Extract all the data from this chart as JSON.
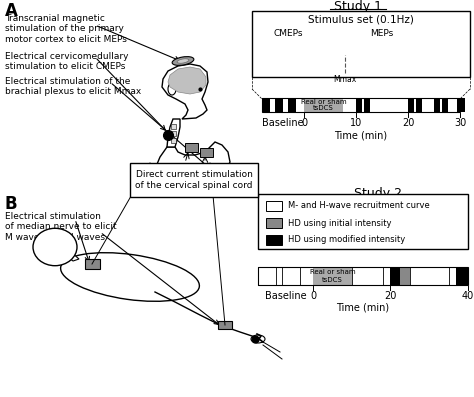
{
  "bg_color": "#ffffff",
  "panel_A_label": "A",
  "panel_B_label": "B",
  "study1_title": "Study 1",
  "study2_title": "Study 2",
  "stimulus_set_title": "Stimulus set (0.1Hz)",
  "cmeps_label": "CMEPs",
  "meps_label": "MEPs",
  "mmax_label": "Mmax",
  "baseline_label": "Baseline",
  "time_label": "Time (min)",
  "real_sham_label": "Real or sham\ntsDCS",
  "direct_current_label": "Direct current stimulation\nof the cervical spinal cord",
  "label_A1": "Transcranial magnetic\nstimulation of the primary\nmotor cortex to elicit MEPs",
  "label_A2": "Electrical cervicomedullary\nstimulation to elicit CMEPs",
  "label_A3": "Electrical stimulation of the\nbrachial plexus to elicit Mmax",
  "label_B1": "Electrical stimulation\nof median nerve to elicit\nM waves and H waves",
  "legend_white": "M- and H-wave recruitment curve",
  "legend_gray": "HD using initial intensity",
  "legend_black": "HD using modified intensity",
  "head_color": "#ffffff",
  "brain_color": "#c0c0c0",
  "electrode_gray": "#888888",
  "arrow_color": "#000000",
  "label_fontsize": 6.5,
  "title_fontsize": 9,
  "tick_fontsize": 7
}
